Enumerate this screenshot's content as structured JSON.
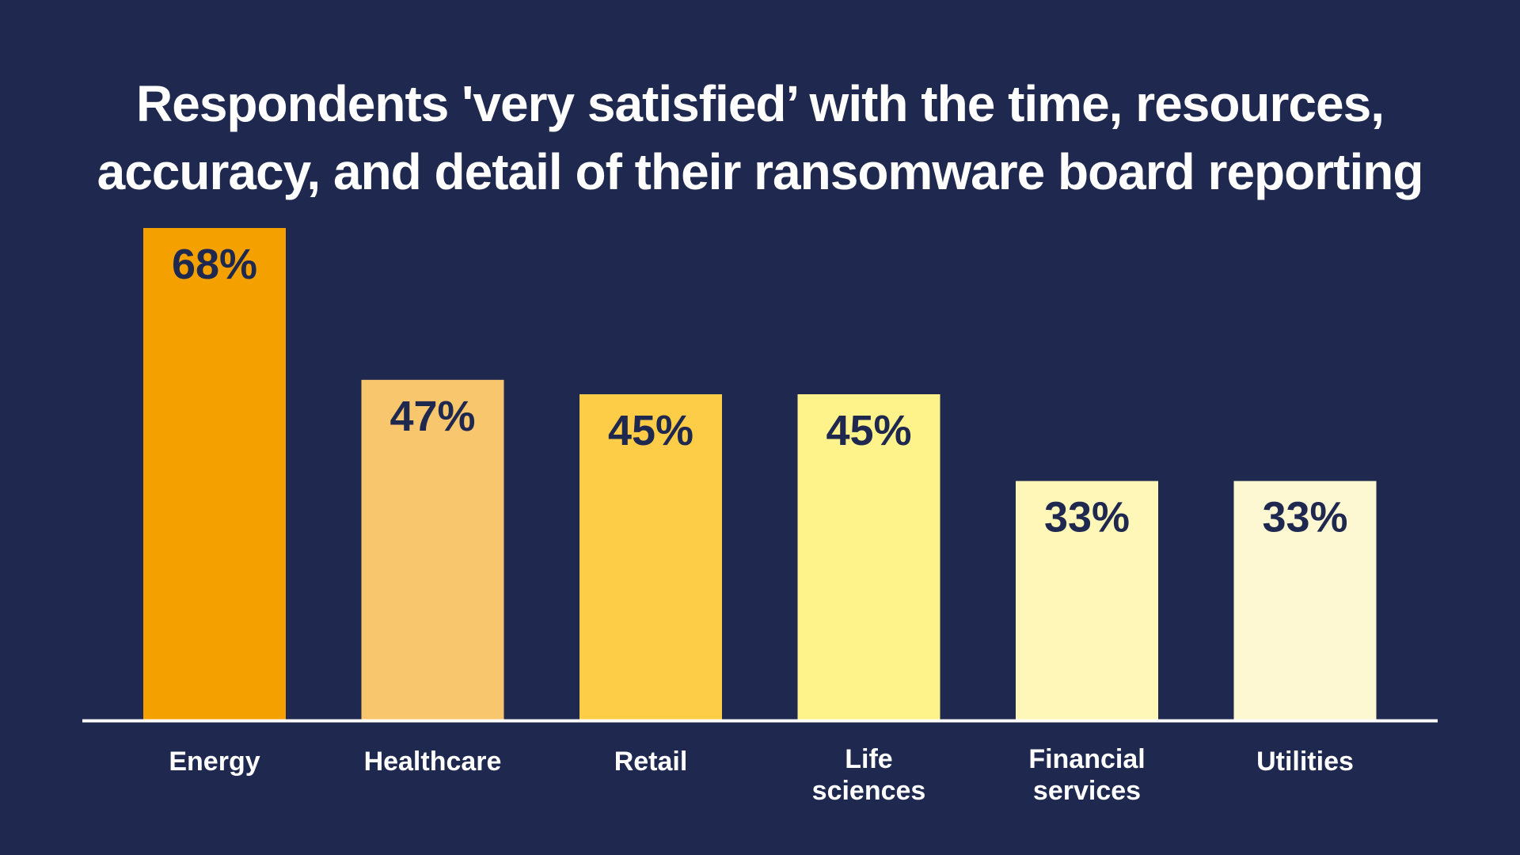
{
  "chart_data": {
    "type": "bar",
    "title_lines": [
      "Respondents 'very satisfied’ with the time, resources,",
      "accuracy, and detail of their ransomware board reporting"
    ],
    "categories": [
      "Energy",
      "Healthcare",
      "Retail",
      "Life sciences",
      "Financial services",
      "Utilities"
    ],
    "category_label_lines": [
      [
        "Energy"
      ],
      [
        "Healthcare"
      ],
      [
        "Retail"
      ],
      [
        "Life",
        "sciences"
      ],
      [
        "Financial",
        "services"
      ],
      [
        "Utilities"
      ]
    ],
    "values": [
      68,
      47,
      45,
      45,
      33,
      33
    ],
    "value_labels": [
      "68%",
      "47%",
      "45%",
      "45%",
      "33%",
      "33%"
    ],
    "unit": "%",
    "bar_colors": [
      "#f4a100",
      "#f8c66c",
      "#fecd47",
      "#fef38a",
      "#fef7b8",
      "#fef8d2"
    ],
    "value_label_color": "#1f284f",
    "background_color": "#1f284f",
    "axis_color": "#ffffff",
    "ylim": [
      0,
      68
    ],
    "grid": false,
    "legend": "none",
    "xlabel": "",
    "ylabel": ""
  }
}
